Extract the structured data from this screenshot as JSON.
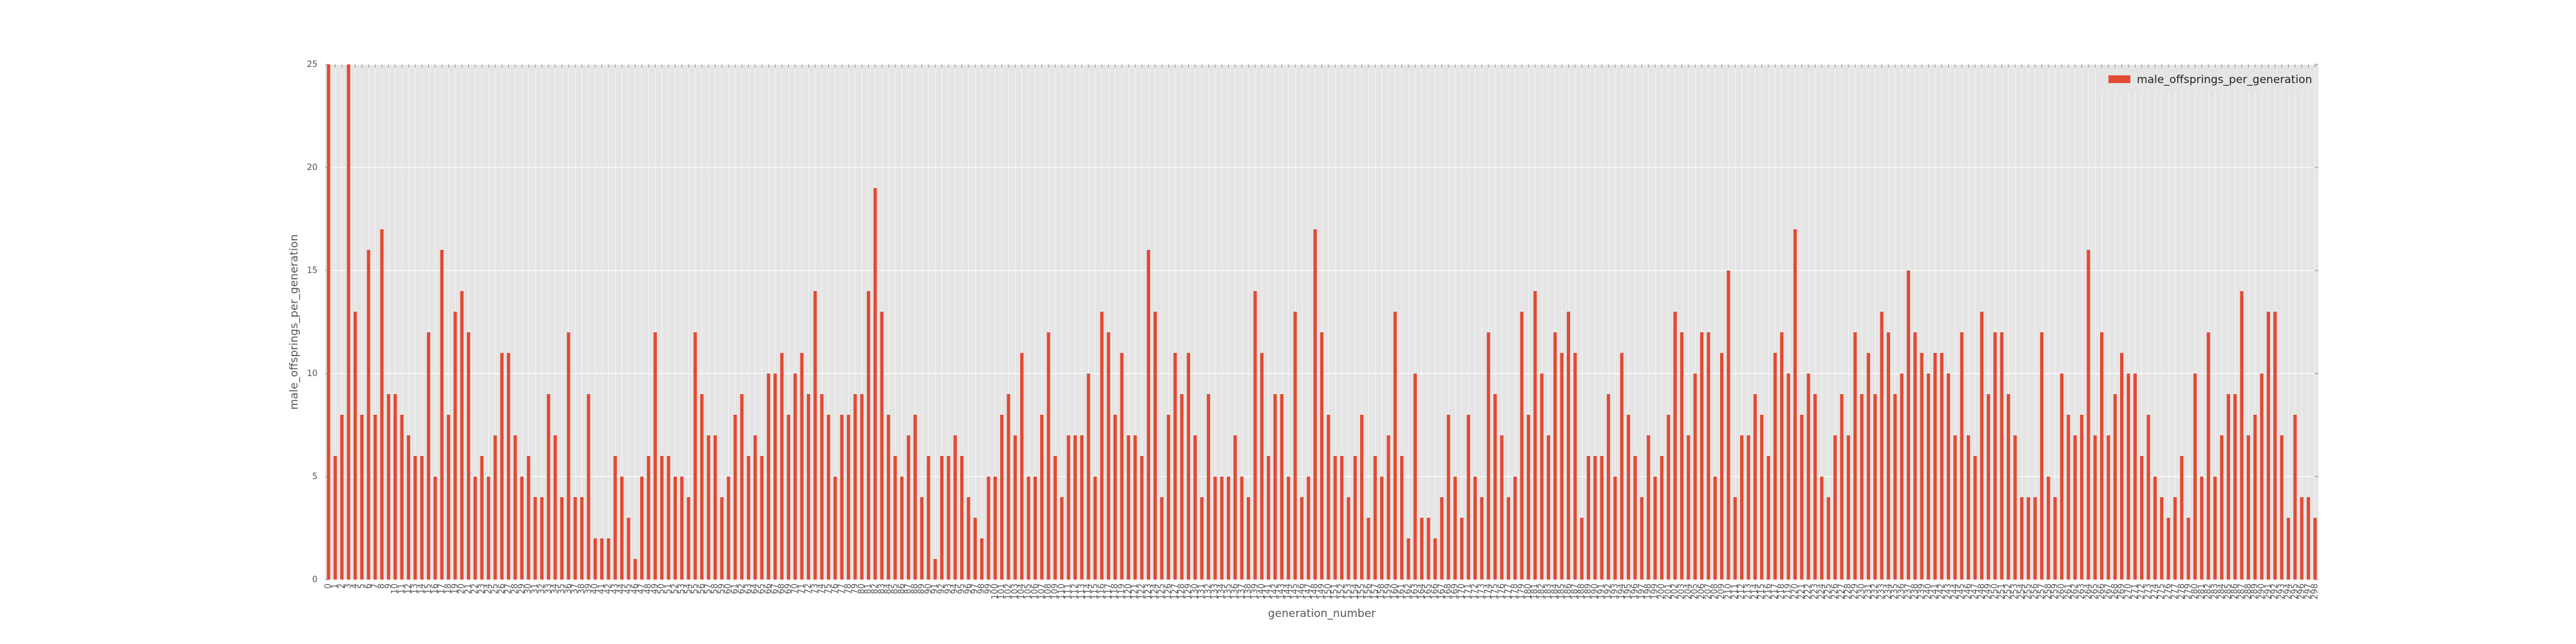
{
  "colors": {
    "bar": "#e24a33",
    "plot_bg": "#e5e5e5",
    "grid": "#ffffff",
    "text": "#555555"
  },
  "chart_data": {
    "type": "bar",
    "xlabel": "generation_number",
    "ylabel": "male_offsprings_per_generation",
    "ylim": [
      0,
      25
    ],
    "yticks": [
      0,
      5,
      10,
      15,
      20,
      25
    ],
    "grid": true,
    "legend_position": "top-right",
    "series": [
      {
        "name": "male_offsprings_per_generation",
        "color": "#e24a33",
        "values": [
          25,
          6,
          8,
          25,
          13,
          8,
          16,
          8,
          17,
          9,
          9,
          8,
          7,
          6,
          6,
          12,
          5,
          16,
          8,
          13,
          14,
          12,
          5,
          6,
          5,
          7,
          11,
          11,
          7,
          5,
          6,
          4,
          4,
          9,
          7,
          4,
          12,
          4,
          4,
          9,
          2,
          2,
          2,
          6,
          5,
          3,
          1,
          5,
          6,
          12,
          6,
          6,
          5,
          5,
          4,
          12,
          9,
          7,
          7,
          4,
          5,
          8,
          9,
          6,
          7,
          6,
          10,
          10,
          11,
          8,
          10,
          11,
          9,
          14,
          9,
          8,
          5,
          8,
          8,
          9,
          9,
          14,
          19,
          13,
          8,
          6,
          5,
          7,
          8,
          4,
          6,
          1,
          6,
          6,
          7,
          6,
          4,
          3,
          2,
          5,
          5,
          8,
          9,
          7,
          11,
          5,
          5,
          8,
          12,
          6,
          4,
          7,
          7,
          7,
          10,
          5,
          13,
          12,
          8,
          11,
          7,
          7,
          6,
          16,
          13,
          4,
          8,
          11,
          9,
          11,
          7,
          4,
          9,
          5,
          5,
          5,
          7,
          5,
          4,
          14,
          11,
          6,
          9,
          9,
          5,
          13,
          4,
          5,
          17,
          12,
          8,
          6,
          6,
          4,
          6,
          8,
          3,
          6,
          5,
          7,
          13,
          6,
          2,
          10,
          3,
          3,
          2,
          4,
          8,
          5,
          3,
          8,
          5,
          4,
          12,
          9,
          7,
          4,
          5,
          13,
          8,
          14,
          10,
          7,
          12,
          11,
          13,
          11,
          3,
          6,
          6,
          6,
          9,
          5,
          11,
          8,
          6,
          4,
          7,
          5,
          6,
          8,
          13,
          12,
          7,
          10,
          12,
          12,
          5,
          11,
          15,
          4,
          7,
          7,
          9,
          8,
          6,
          11,
          12,
          10,
          17,
          8,
          10,
          9,
          5,
          4,
          7,
          9,
          7,
          12,
          9,
          11,
          9,
          13,
          12,
          9,
          10,
          15,
          12,
          11,
          10,
          11,
          11,
          10,
          7,
          12,
          7,
          6,
          13,
          9,
          12,
          12,
          9,
          7,
          4,
          4,
          4,
          12,
          5,
          4,
          10,
          8,
          7,
          8,
          16,
          7,
          12,
          7,
          9,
          11,
          10,
          10,
          6,
          8,
          5,
          4,
          3,
          4,
          6,
          3,
          10,
          5,
          12,
          5,
          7,
          9,
          9,
          14,
          7,
          8,
          10,
          13,
          13,
          7,
          3,
          8,
          4,
          4,
          3
        ]
      }
    ]
  }
}
